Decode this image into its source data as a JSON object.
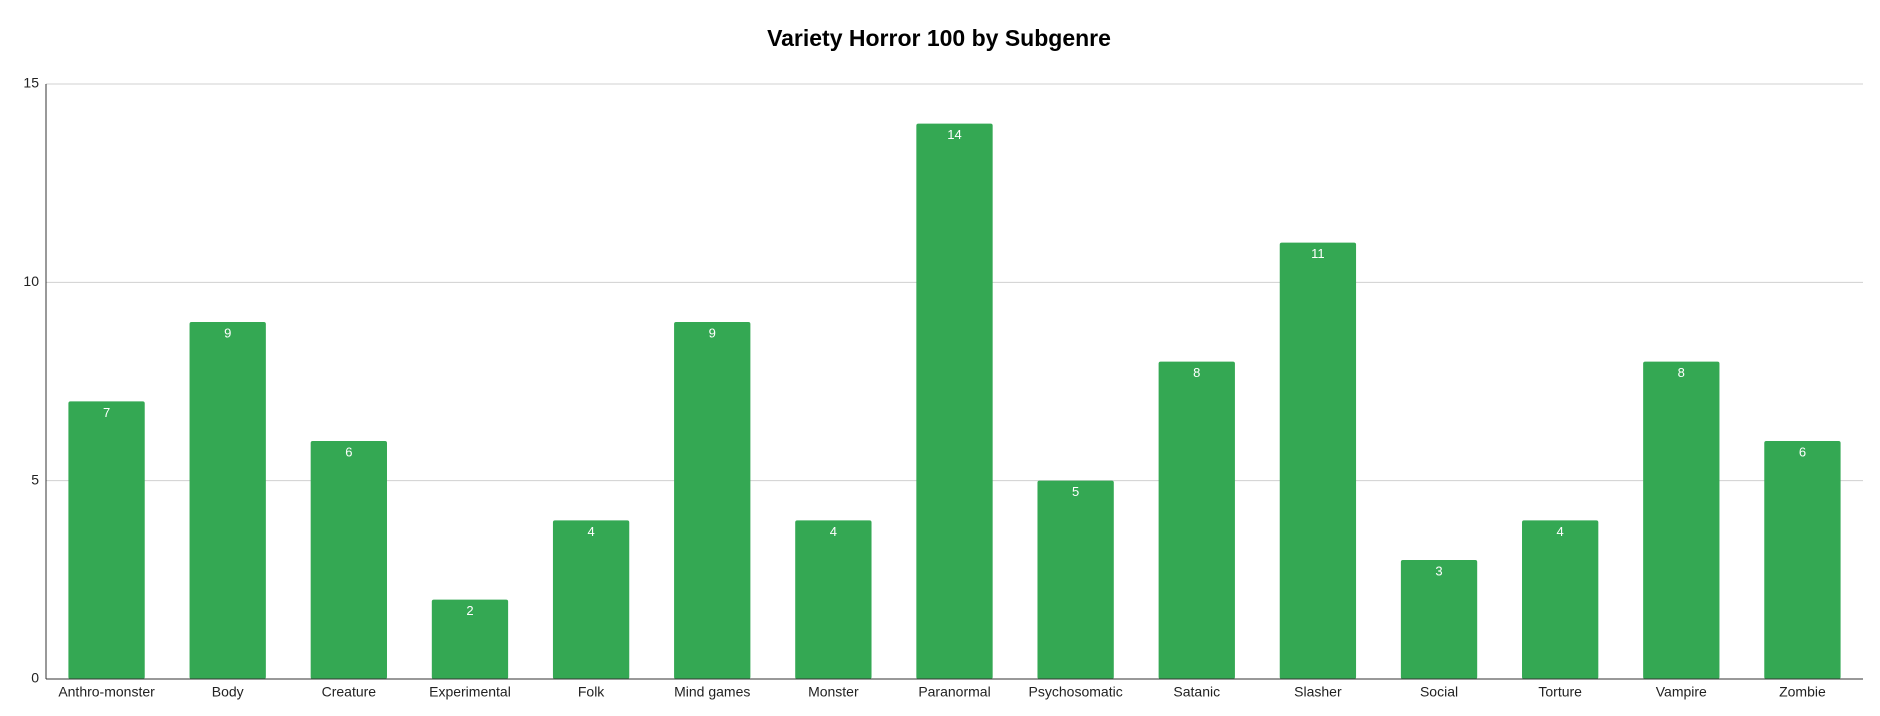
{
  "chart_data": {
    "type": "bar",
    "title": "Variety Horror 100 by Subgenre",
    "categories": [
      "Anthro-monster",
      "Body",
      "Creature",
      "Experimental",
      "Folk",
      "Mind games",
      "Monster",
      "Paranormal",
      "Psychosomatic",
      "Satanic",
      "Slasher",
      "Social",
      "Torture",
      "Vampire",
      "Zombie"
    ],
    "values": [
      7,
      9,
      6,
      2,
      4,
      9,
      4,
      14,
      5,
      8,
      11,
      3,
      4,
      8,
      6
    ],
    "color": "#34a853",
    "ylim": [
      0,
      15
    ],
    "yticks": [
      0,
      5,
      10,
      15
    ],
    "grid": true
  }
}
